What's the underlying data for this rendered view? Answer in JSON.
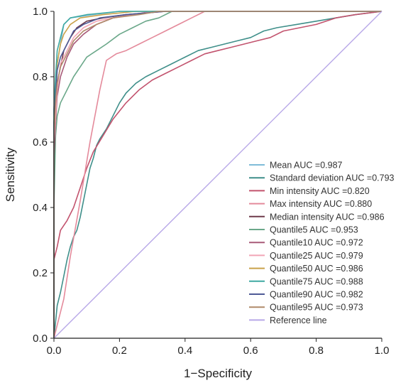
{
  "chart_data": {
    "type": "line",
    "title": "",
    "xlabel": "1−Specificity",
    "ylabel": "Sensitivity",
    "xlim": [
      0,
      1
    ],
    "ylim": [
      0,
      1
    ],
    "x_ticks": [
      "0.0",
      "0.2",
      "0.4",
      "0.6",
      "0.8",
      "1.0"
    ],
    "y_ticks": [
      "0.0",
      "0.2",
      "0.4",
      "0.6",
      "0.8",
      "1.0"
    ],
    "grid": false,
    "legend_position": "bottom-right",
    "series": [
      {
        "name": "Mean AUC =0.987",
        "color": "#7fbcd8",
        "points": [
          [
            0,
            0
          ],
          [
            0,
            0.5
          ],
          [
            0.005,
            0.72
          ],
          [
            0.01,
            0.84
          ],
          [
            0.02,
            0.9
          ],
          [
            0.03,
            0.96
          ],
          [
            0.05,
            0.98
          ],
          [
            0.12,
            0.99
          ],
          [
            0.2,
            1.0
          ],
          [
            1,
            1
          ]
        ]
      },
      {
        "name": "Standard deviation AUC =0.793",
        "color": "#3f8f8a",
        "points": [
          [
            0,
            0
          ],
          [
            0.01,
            0.1
          ],
          [
            0.02,
            0.14
          ],
          [
            0.03,
            0.19
          ],
          [
            0.04,
            0.24
          ],
          [
            0.05,
            0.28
          ],
          [
            0.06,
            0.31
          ],
          [
            0.07,
            0.33
          ],
          [
            0.08,
            0.37
          ],
          [
            0.09,
            0.42
          ],
          [
            0.1,
            0.47
          ],
          [
            0.11,
            0.52
          ],
          [
            0.12,
            0.55
          ],
          [
            0.13,
            0.59
          ],
          [
            0.14,
            0.61
          ],
          [
            0.16,
            0.64
          ],
          [
            0.18,
            0.68
          ],
          [
            0.2,
            0.72
          ],
          [
            0.22,
            0.75
          ],
          [
            0.25,
            0.78
          ],
          [
            0.28,
            0.8
          ],
          [
            0.32,
            0.82
          ],
          [
            0.36,
            0.84
          ],
          [
            0.4,
            0.86
          ],
          [
            0.44,
            0.88
          ],
          [
            0.48,
            0.89
          ],
          [
            0.52,
            0.9
          ],
          [
            0.56,
            0.91
          ],
          [
            0.6,
            0.92
          ],
          [
            0.64,
            0.94
          ],
          [
            0.68,
            0.95
          ],
          [
            0.74,
            0.96
          ],
          [
            0.8,
            0.97
          ],
          [
            0.86,
            0.98
          ],
          [
            0.92,
            0.99
          ],
          [
            1,
            1
          ]
        ]
      },
      {
        "name": "Min intensity AUC =0.820",
        "color": "#c2536e",
        "points": [
          [
            0,
            0
          ],
          [
            0,
            0.24
          ],
          [
            0.01,
            0.28
          ],
          [
            0.02,
            0.33
          ],
          [
            0.04,
            0.36
          ],
          [
            0.06,
            0.4
          ],
          [
            0.08,
            0.46
          ],
          [
            0.1,
            0.52
          ],
          [
            0.12,
            0.57
          ],
          [
            0.15,
            0.62
          ],
          [
            0.18,
            0.67
          ],
          [
            0.22,
            0.72
          ],
          [
            0.26,
            0.76
          ],
          [
            0.3,
            0.79
          ],
          [
            0.34,
            0.81
          ],
          [
            0.38,
            0.83
          ],
          [
            0.42,
            0.85
          ],
          [
            0.46,
            0.87
          ],
          [
            0.5,
            0.88
          ],
          [
            0.54,
            0.89
          ],
          [
            0.58,
            0.9
          ],
          [
            0.62,
            0.91
          ],
          [
            0.66,
            0.92
          ],
          [
            0.7,
            0.94
          ],
          [
            0.75,
            0.95
          ],
          [
            0.8,
            0.96
          ],
          [
            0.86,
            0.98
          ],
          [
            0.92,
            0.99
          ],
          [
            1,
            1
          ]
        ]
      },
      {
        "name": "Max intensity AUC =0.880",
        "color": "#e48a9b",
        "points": [
          [
            0,
            0
          ],
          [
            0.01,
            0.04
          ],
          [
            0.03,
            0.12
          ],
          [
            0.05,
            0.25
          ],
          [
            0.08,
            0.42
          ],
          [
            0.11,
            0.6
          ],
          [
            0.14,
            0.76
          ],
          [
            0.16,
            0.85
          ],
          [
            0.19,
            0.87
          ],
          [
            0.22,
            0.88
          ],
          [
            0.26,
            0.9
          ],
          [
            0.3,
            0.92
          ],
          [
            0.34,
            0.94
          ],
          [
            0.38,
            0.96
          ],
          [
            0.42,
            0.98
          ],
          [
            0.46,
            1.0
          ],
          [
            1,
            1
          ]
        ]
      },
      {
        "name": "Median intensity AUC =0.986",
        "color": "#6e3a4a",
        "points": [
          [
            0,
            0
          ],
          [
            0,
            0.56
          ],
          [
            0.005,
            0.7
          ],
          [
            0.01,
            0.78
          ],
          [
            0.02,
            0.83
          ],
          [
            0.03,
            0.88
          ],
          [
            0.05,
            0.92
          ],
          [
            0.07,
            0.95
          ],
          [
            0.1,
            0.97
          ],
          [
            0.15,
            0.98
          ],
          [
            0.22,
            0.99
          ],
          [
            0.34,
            1.0
          ],
          [
            1,
            1
          ]
        ]
      },
      {
        "name": "Quantile5 AUC =0.953",
        "color": "#6ba88a",
        "points": [
          [
            0,
            0
          ],
          [
            0,
            0.4
          ],
          [
            0.005,
            0.62
          ],
          [
            0.01,
            0.68
          ],
          [
            0.02,
            0.72
          ],
          [
            0.04,
            0.76
          ],
          [
            0.06,
            0.8
          ],
          [
            0.08,
            0.83
          ],
          [
            0.1,
            0.86
          ],
          [
            0.13,
            0.88
          ],
          [
            0.16,
            0.9
          ],
          [
            0.2,
            0.93
          ],
          [
            0.24,
            0.95
          ],
          [
            0.28,
            0.97
          ],
          [
            0.32,
            0.98
          ],
          [
            0.36,
            1.0
          ],
          [
            1,
            1
          ]
        ]
      },
      {
        "name": "Quantile10 AUC =0.972",
        "color": "#a85a78",
        "points": [
          [
            0,
            0
          ],
          [
            0,
            0.55
          ],
          [
            0.005,
            0.66
          ],
          [
            0.01,
            0.74
          ],
          [
            0.02,
            0.8
          ],
          [
            0.04,
            0.86
          ],
          [
            0.06,
            0.9
          ],
          [
            0.09,
            0.93
          ],
          [
            0.13,
            0.96
          ],
          [
            0.18,
            0.98
          ],
          [
            0.24,
            0.99
          ],
          [
            0.3,
            1.0
          ],
          [
            1,
            1
          ]
        ]
      },
      {
        "name": "Quantile25 AUC =0.979",
        "color": "#f2a5b6",
        "points": [
          [
            0,
            0
          ],
          [
            0,
            0.6
          ],
          [
            0.005,
            0.68
          ],
          [
            0.01,
            0.76
          ],
          [
            0.02,
            0.84
          ],
          [
            0.04,
            0.88
          ],
          [
            0.06,
            0.92
          ],
          [
            0.09,
            0.95
          ],
          [
            0.13,
            0.97
          ],
          [
            0.18,
            0.98
          ],
          [
            0.25,
            0.99
          ],
          [
            0.3,
            1.0
          ],
          [
            1,
            1
          ]
        ]
      },
      {
        "name": "Quantile50 AUC =0.986",
        "color": "#c9a24a",
        "points": [
          [
            0,
            0
          ],
          [
            0,
            0.66
          ],
          [
            0.005,
            0.76
          ],
          [
            0.01,
            0.84
          ],
          [
            0.02,
            0.9
          ],
          [
            0.03,
            0.93
          ],
          [
            0.05,
            0.96
          ],
          [
            0.08,
            0.98
          ],
          [
            0.15,
            0.99
          ],
          [
            0.25,
            1.0
          ],
          [
            1,
            1
          ]
        ]
      },
      {
        "name": "Quantile75 AUC =0.988",
        "color": "#3fa9a2",
        "points": [
          [
            0,
            0
          ],
          [
            0,
            0.7
          ],
          [
            0.005,
            0.8
          ],
          [
            0.01,
            0.88
          ],
          [
            0.02,
            0.92
          ],
          [
            0.03,
            0.96
          ],
          [
            0.05,
            0.98
          ],
          [
            0.1,
            0.99
          ],
          [
            0.2,
            1.0
          ],
          [
            1,
            1
          ]
        ]
      },
      {
        "name": "Quantile90 AUC =0.982",
        "color": "#4e5a96",
        "points": [
          [
            0,
            0
          ],
          [
            0,
            0.66
          ],
          [
            0.005,
            0.74
          ],
          [
            0.01,
            0.82
          ],
          [
            0.02,
            0.86
          ],
          [
            0.04,
            0.9
          ],
          [
            0.06,
            0.94
          ],
          [
            0.09,
            0.96
          ],
          [
            0.14,
            0.98
          ],
          [
            0.22,
            0.99
          ],
          [
            0.34,
            1.0
          ],
          [
            1,
            1
          ]
        ]
      },
      {
        "name": "Quantile95 AUC =0.973",
        "color": "#b08a6a",
        "points": [
          [
            0,
            0
          ],
          [
            0,
            0.62
          ],
          [
            0.005,
            0.72
          ],
          [
            0.01,
            0.78
          ],
          [
            0.02,
            0.83
          ],
          [
            0.04,
            0.87
          ],
          [
            0.06,
            0.91
          ],
          [
            0.09,
            0.94
          ],
          [
            0.13,
            0.96
          ],
          [
            0.18,
            0.98
          ],
          [
            0.26,
            0.99
          ],
          [
            0.32,
            1.0
          ],
          [
            1,
            1
          ]
        ]
      },
      {
        "name": "Reference line",
        "color": "#b8a8e8",
        "points": [
          [
            0,
            0
          ],
          [
            1,
            1
          ]
        ]
      }
    ]
  }
}
